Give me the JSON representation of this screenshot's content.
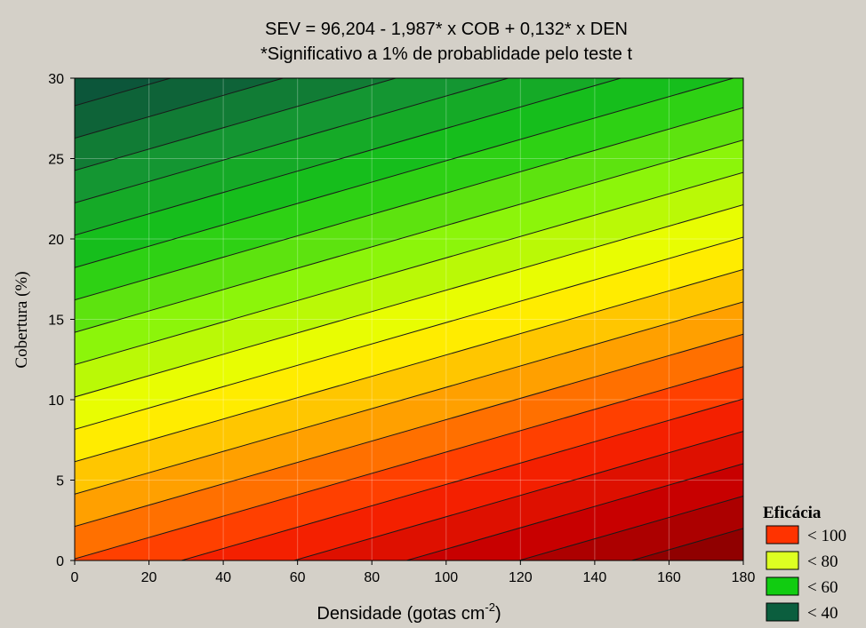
{
  "chart_data": {
    "type": "heatmap",
    "title": "SEV = 96,204 - 1,987* x COB + 0,132* x DEN",
    "subtitle": "*Significativo a 1% de probablidade pelo teste t",
    "xlabel_main": "Densidade (gotas cm",
    "xlabel_sup": "-2",
    "xlabel_end": ")",
    "ylabel": "Cobertura (%)",
    "xlim": [
      0,
      180
    ],
    "ylim": [
      0,
      30
    ],
    "x_ticks": [
      0,
      20,
      40,
      60,
      80,
      100,
      120,
      140,
      160,
      180
    ],
    "y_ticks": [
      0,
      5,
      10,
      15,
      20,
      25,
      30
    ],
    "x_tick_labels": [
      "0",
      "20",
      "40",
      "60",
      "80",
      "100",
      "120",
      "140",
      "160",
      "180"
    ],
    "y_tick_labels": [
      "0",
      "5",
      "10",
      "15",
      "20",
      "25",
      "30"
    ],
    "surface": {
      "intercept": 96.204,
      "coef_x": 0.132,
      "coef_y": -1.987
    },
    "contour_levels": [
      40,
      44,
      48,
      52,
      56,
      60,
      64,
      68,
      72,
      76,
      80,
      84,
      88,
      92,
      96,
      100,
      104,
      108,
      112,
      116,
      120
    ],
    "grid": true,
    "colors": {
      "low": "#0e5a3a",
      "mid_low": "#17c417",
      "mid": "#ffff00",
      "high": "#ff2a00",
      "max": "#8a0000",
      "background": "#d4d0c8"
    },
    "legend": {
      "title": "Eficácia",
      "position": "bottom-right",
      "items": [
        {
          "label": "< 100",
          "color": "#ff3300"
        },
        {
          "label": "< 80",
          "color": "#ddff22"
        },
        {
          "label": "< 60",
          "color": "#11cc11"
        },
        {
          "label": "< 40",
          "color": "#0b5e3e"
        }
      ]
    }
  }
}
